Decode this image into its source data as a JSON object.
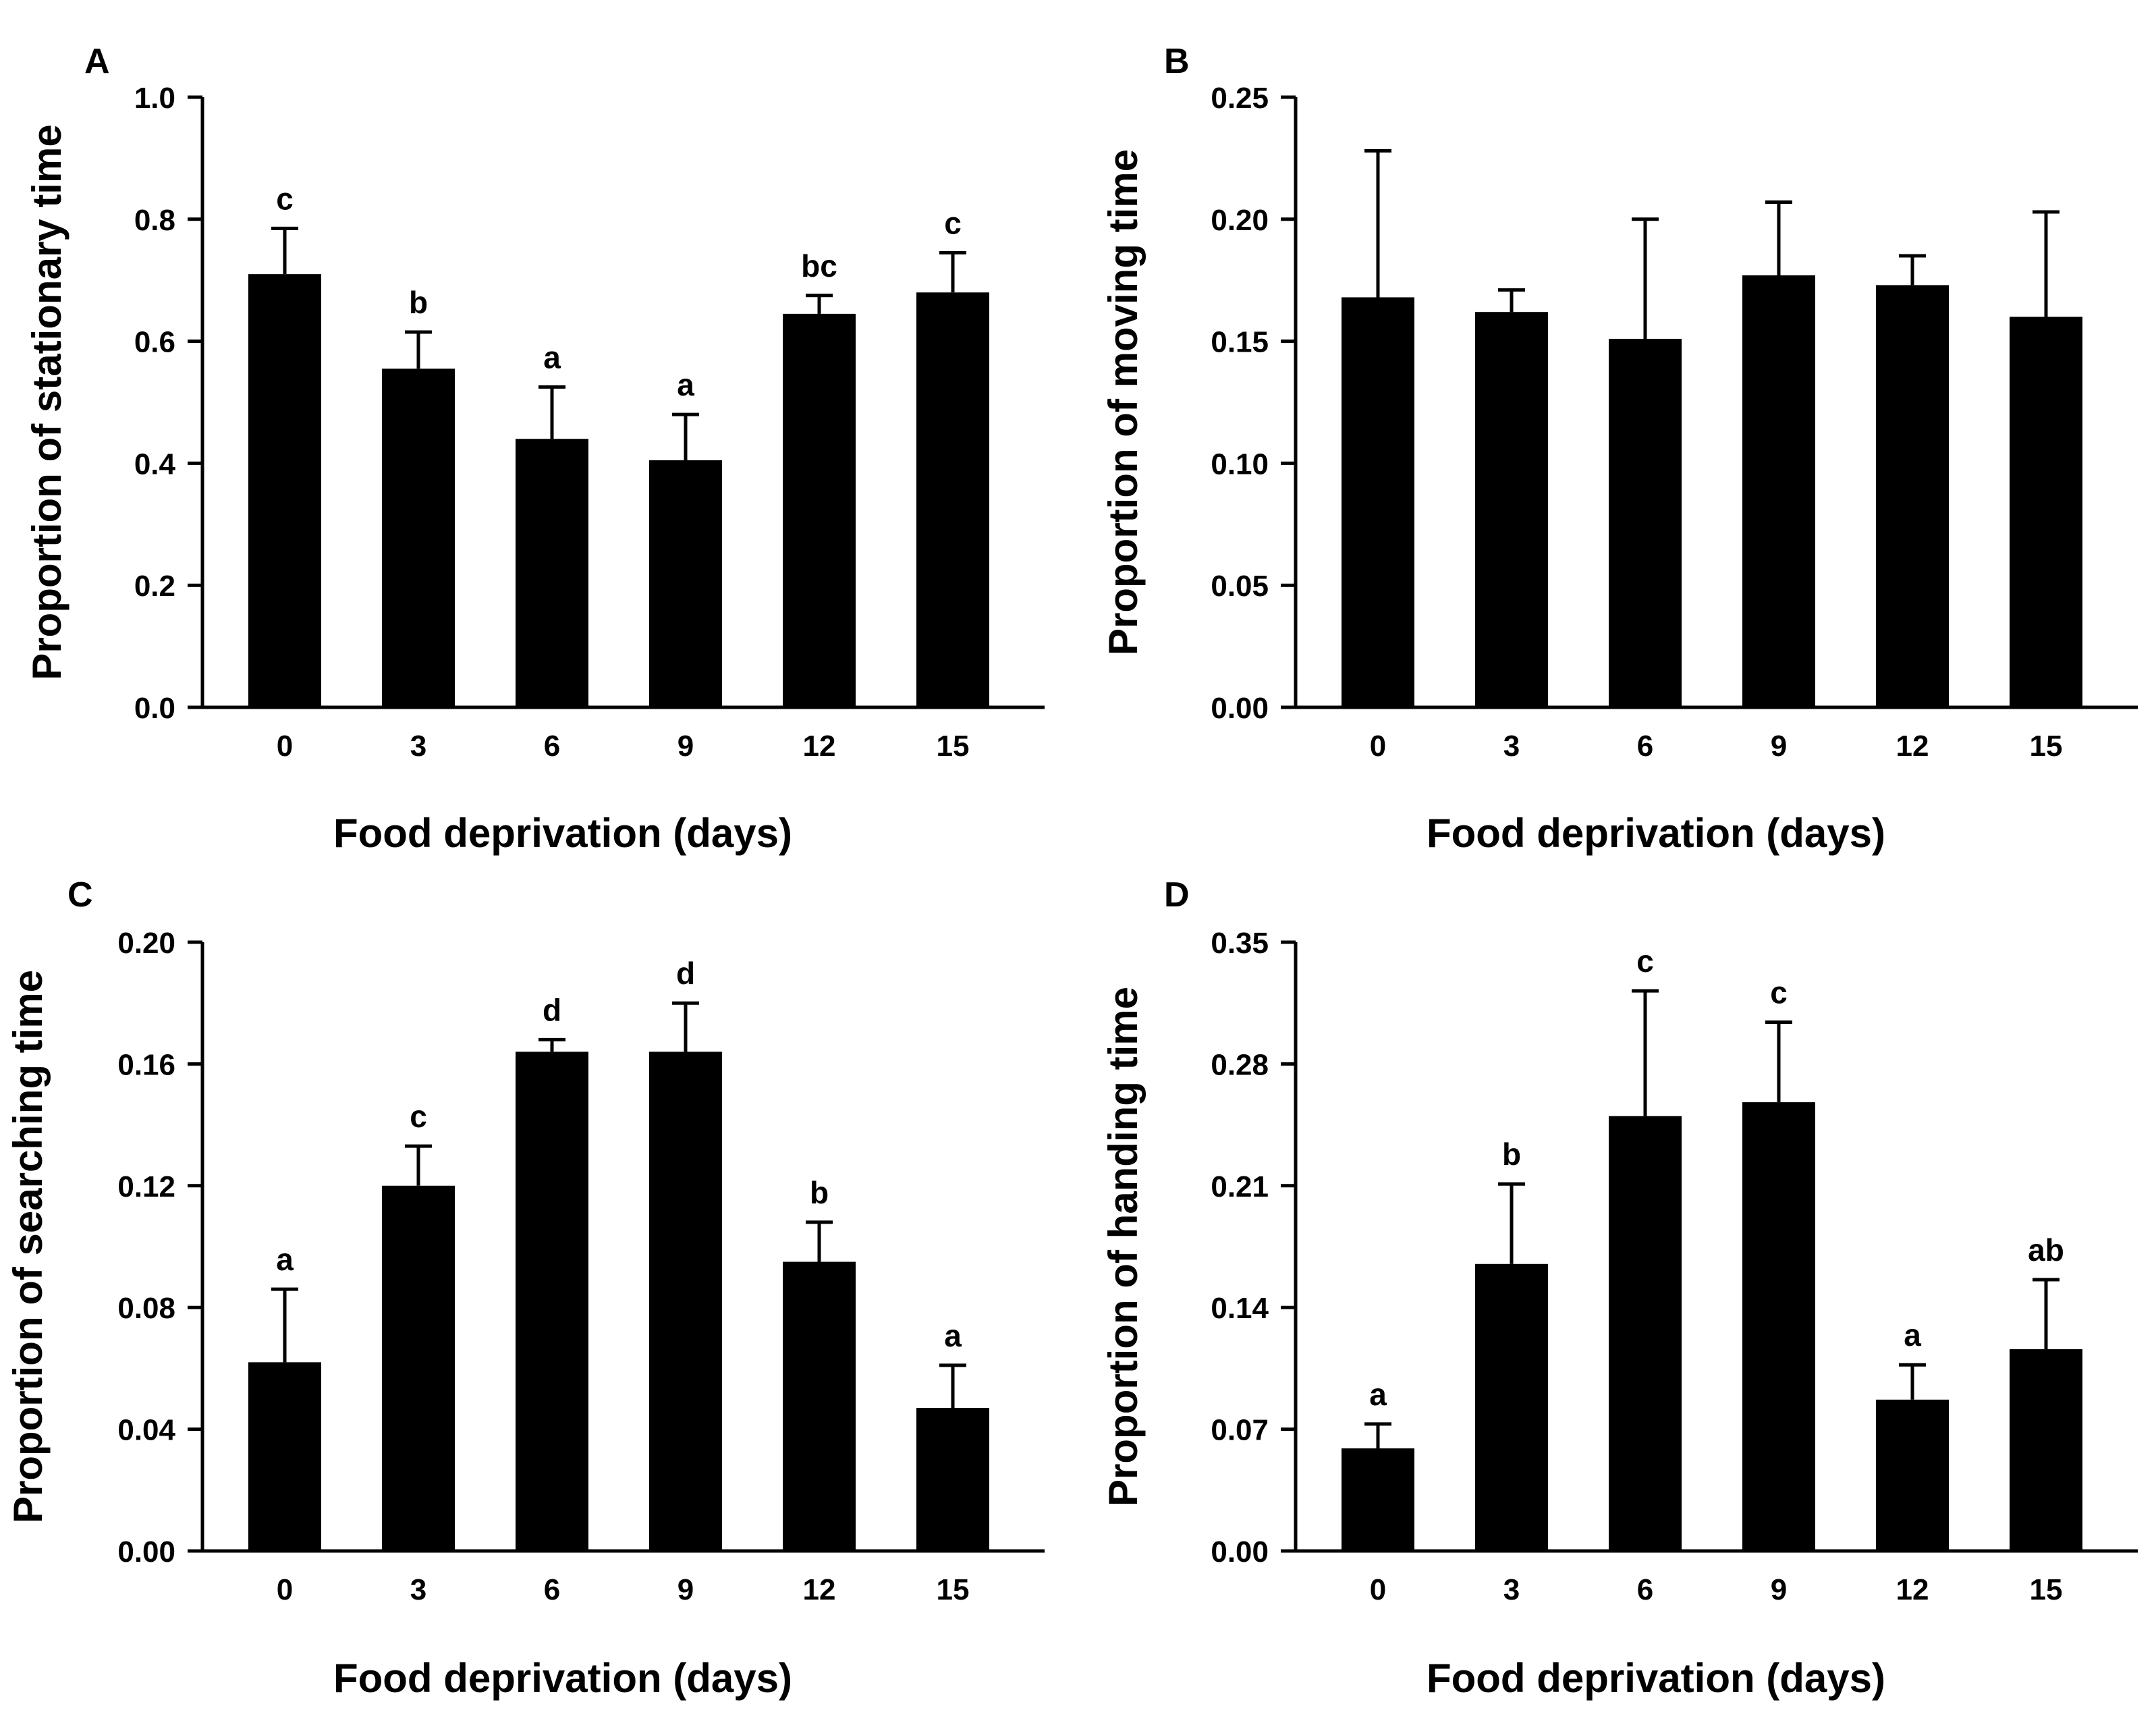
{
  "colors": {
    "bar": "#000000",
    "axis": "#000000",
    "background": "#ffffff"
  },
  "chart_data": [
    {
      "panel": "A",
      "type": "bar",
      "categories": [
        "0",
        "3",
        "6",
        "9",
        "12",
        "15"
      ],
      "values": [
        0.71,
        0.555,
        0.44,
        0.405,
        0.645,
        0.68
      ],
      "errors": [
        0.075,
        0.06,
        0.085,
        0.075,
        0.03,
        0.065
      ],
      "significance": [
        "c",
        "b",
        "a",
        "a",
        "bc",
        "c"
      ],
      "xlabel": "Food deprivation (days)",
      "ylabel": "Proportion of stationary time",
      "ylim": [
        0,
        1.0
      ],
      "yticks": [
        "0.0",
        "0.2",
        "0.4",
        "0.6",
        "0.8",
        "1.0"
      ]
    },
    {
      "panel": "B",
      "type": "bar",
      "categories": [
        "0",
        "3",
        "6",
        "9",
        "12",
        "15"
      ],
      "values": [
        0.168,
        0.162,
        0.151,
        0.177,
        0.173,
        0.16
      ],
      "errors": [
        0.06,
        0.009,
        0.049,
        0.03,
        0.012,
        0.043
      ],
      "significance": [
        "",
        "",
        "",
        "",
        "",
        ""
      ],
      "xlabel": "Food deprivation (days)",
      "ylabel": "Proportion of moving time",
      "ylim": [
        0,
        0.25
      ],
      "yticks": [
        "0.00",
        "0.05",
        "0.10",
        "0.15",
        "0.20",
        "0.25"
      ]
    },
    {
      "panel": "C",
      "type": "bar",
      "categories": [
        "0",
        "3",
        "6",
        "9",
        "12",
        "15"
      ],
      "values": [
        0.062,
        0.12,
        0.164,
        0.164,
        0.095,
        0.047
      ],
      "errors": [
        0.024,
        0.013,
        0.004,
        0.016,
        0.013,
        0.014
      ],
      "significance": [
        "a",
        "c",
        "d",
        "d",
        "b",
        "a"
      ],
      "xlabel": "Food deprivation (days)",
      "ylabel": "Proportion of searching time",
      "ylim": [
        0,
        0.2
      ],
      "yticks": [
        "0.00",
        "0.04",
        "0.08",
        "0.12",
        "0.16",
        "0.20"
      ]
    },
    {
      "panel": "D",
      "type": "bar",
      "categories": [
        "0",
        "3",
        "6",
        "9",
        "12",
        "15"
      ],
      "values": [
        0.059,
        0.165,
        0.25,
        0.258,
        0.087,
        0.116
      ],
      "errors": [
        0.014,
        0.046,
        0.072,
        0.046,
        0.02,
        0.04
      ],
      "significance": [
        "a",
        "b",
        "c",
        "c",
        "a",
        "ab"
      ],
      "xlabel": "Food deprivation (days)",
      "ylabel": "Proportion of handing time",
      "ylim": [
        0,
        0.35
      ],
      "yticks": [
        "0.00",
        "0.07",
        "0.14",
        "0.21",
        "0.28",
        "0.35"
      ]
    }
  ]
}
